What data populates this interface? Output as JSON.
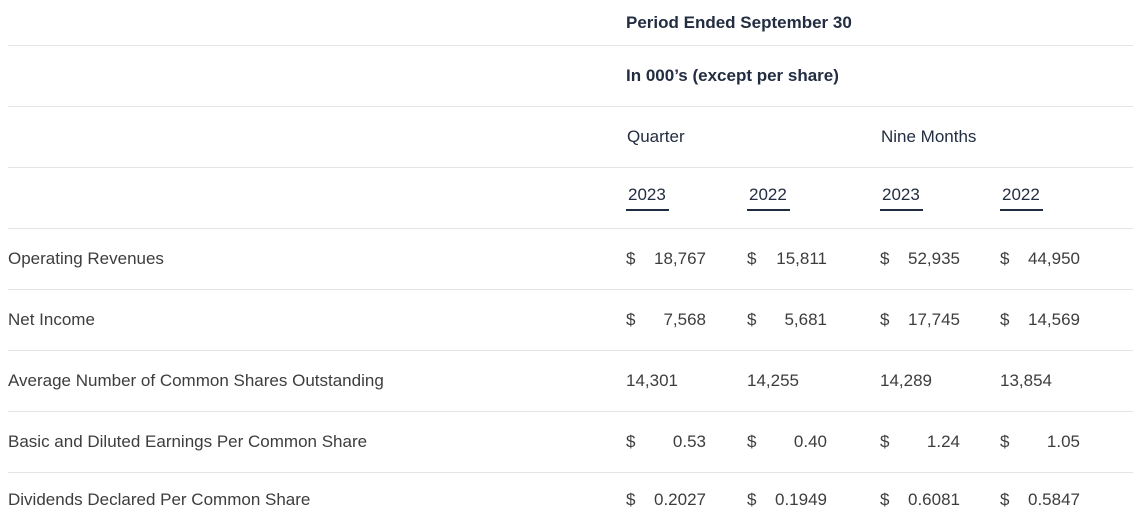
{
  "table": {
    "title": "Period Ended September 30",
    "units_note": "In 000’s (except per share)",
    "groups": [
      {
        "label": "Quarter"
      },
      {
        "label": "Nine Months"
      }
    ],
    "years": [
      "2023",
      "2022",
      "2023",
      "2022"
    ],
    "rows": [
      {
        "label": "Operating Revenues",
        "cells": [
          {
            "currency": "$",
            "value": "18,767"
          },
          {
            "currency": "$",
            "value": "15,811"
          },
          {
            "currency": "$",
            "value": "52,935"
          },
          {
            "currency": "$",
            "value": "44,950"
          }
        ]
      },
      {
        "label": "Net Income",
        "cells": [
          {
            "currency": "$",
            "value": "7,568"
          },
          {
            "currency": "$",
            "value": "5,681"
          },
          {
            "currency": "$",
            "value": "17,745"
          },
          {
            "currency": "$",
            "value": "14,569"
          }
        ]
      },
      {
        "label": "Average Number of Common Shares Outstanding",
        "cells": [
          {
            "currency": "",
            "value": "14,301"
          },
          {
            "currency": "",
            "value": "14,255"
          },
          {
            "currency": "",
            "value": "14,289"
          },
          {
            "currency": "",
            "value": "13,854"
          }
        ]
      },
      {
        "label": "Basic and Diluted Earnings Per Common Share",
        "cells": [
          {
            "currency": "$",
            "value": "0.53"
          },
          {
            "currency": "$",
            "value": "0.40"
          },
          {
            "currency": "$",
            "value": "1.24"
          },
          {
            "currency": "$",
            "value": "1.05"
          }
        ]
      },
      {
        "label": "Dividends Declared Per Common Share",
        "cells": [
          {
            "currency": "$",
            "value": "0.2027"
          },
          {
            "currency": "$",
            "value": "0.1949"
          },
          {
            "currency": "$",
            "value": "0.6081"
          },
          {
            "currency": "$",
            "value": "0.5847"
          }
        ]
      }
    ],
    "colors": {
      "header_text": "#232d41",
      "body_text": "#3d3d3d",
      "divider": "#e4e4e4",
      "background": "#ffffff"
    }
  }
}
